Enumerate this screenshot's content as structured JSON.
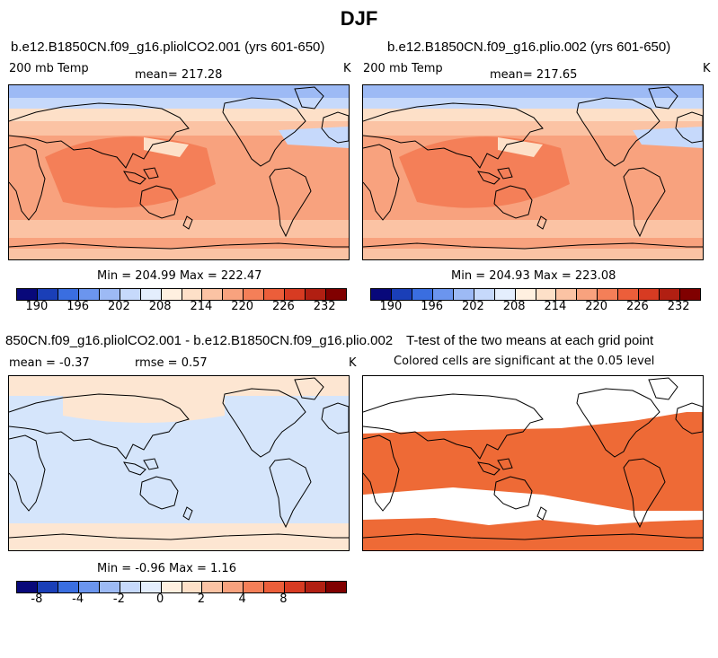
{
  "figure_title": "DJF",
  "panels": {
    "top_left": {
      "title": "b.e12.B1850CN.f09_g16.pliolCO2.001 (yrs 601-650)",
      "left_label": "200 mb Temp",
      "center_label": "mean= 217.28",
      "right_label": "K",
      "minmax": "Min = 204.99 Max = 222.47"
    },
    "top_right": {
      "title": "b.e12.B1850CN.f09_g16.plio.002 (yrs 601-650)",
      "left_label": "200 mb Temp",
      "center_label": "mean= 217.65",
      "right_label": "K",
      "minmax": "Min = 204.93 Max = 223.08"
    },
    "bottom_left": {
      "title": "850CN.f09_g16.pliolCO2.001 - b.e12.B1850CN.f09_g16.plio.002",
      "mean_label": "mean = -0.37",
      "rmse_label": "rmse = 0.57",
      "right_label": "K",
      "minmax": "Min = -0.96 Max = 1.16"
    },
    "bottom_right": {
      "title": "T-test of the two means at each grid point",
      "subtitle": "Colored cells are significant at the 0.05 level"
    }
  },
  "colorbars": {
    "temp": {
      "labels": [
        "190",
        "196",
        "202",
        "208",
        "214",
        "220",
        "226",
        "232"
      ],
      "colors": [
        "#08087a",
        "#1a3fb8",
        "#3a6ee0",
        "#6b95ee",
        "#9dbaf5",
        "#c6d9fb",
        "#e4eefd",
        "#fff0e0",
        "#fde0c8",
        "#fbc3a4",
        "#f8a27e",
        "#f47f58",
        "#ec5e3a",
        "#d73b22",
        "#b11f12",
        "#800000"
      ]
    },
    "diff": {
      "labels": [
        "-8",
        "-4",
        "-2",
        "0",
        "2",
        "4",
        "8"
      ],
      "colors": [
        "#08087a",
        "#1a3fb8",
        "#3a6ee0",
        "#6b95ee",
        "#9dbaf5",
        "#c6d9fb",
        "#e4eefd",
        "#fff0e0",
        "#fde0c8",
        "#fbc3a4",
        "#f8a27e",
        "#f47f58",
        "#ec5e3a",
        "#d73b22",
        "#b11f12",
        "#800000"
      ]
    }
  },
  "map_colors": {
    "ocean_warm": "#f47f58",
    "mid": "#f8a27e",
    "light": "#fbc3a4",
    "pale": "#fde0c8",
    "cool": "#c6d9fb",
    "cold": "#9dbaf5",
    "diff_neg": "#d5e5fb",
    "diff_pos": "#fde6d2",
    "sig": "#ee6a36"
  }
}
